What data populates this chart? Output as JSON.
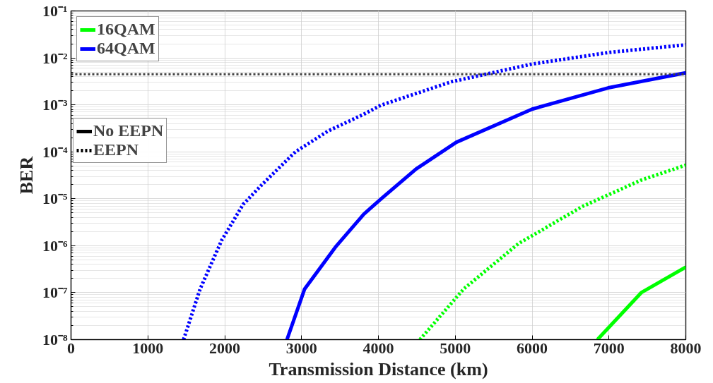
{
  "chart_data": {
    "type": "line",
    "xlabel": "Transmission Distance (km)",
    "ylabel": "BER",
    "log": "y",
    "grid": true,
    "legend": "top left",
    "marker": "none",
    "xlim": [
      0,
      8000
    ],
    "xticks": [
      0,
      1000,
      2000,
      3000,
      4000,
      5000,
      6000,
      7000,
      8000
    ],
    "ylim": [
      1e-08,
      0.1
    ],
    "yticks": [
      {
        "value": 1e-08,
        "label": "10⁻⁸"
      },
      {
        "value": 1e-07,
        "label": "10⁻⁷"
      },
      {
        "value": 1e-06,
        "label": "10⁻⁶"
      },
      {
        "value": 1e-05,
        "label": "10⁻⁵"
      },
      {
        "value": 0.0001,
        "label": "10⁻⁴"
      },
      {
        "value": 0.001,
        "label": "10⁻³"
      },
      {
        "value": 0.01,
        "label": "10⁻²"
      },
      {
        "value": 0.1,
        "label": "10⁻¹"
      }
    ],
    "annotations": [
      "No EEPN",
      "EEPN"
    ],
    "ref_lines": [
      {
        "axis": "y",
        "value": 0.0045,
        "color": "#404040",
        "line_style": "dotted"
      }
    ],
    "series": [
      {
        "name": "16QAM",
        "color": "#00ff00",
        "line_style": "solid",
        "x": [
          6850,
          7420,
          8000
        ],
        "values": [
          1e-08,
          1e-07,
          3.5e-07
        ]
      },
      {
        "name": "64QAM",
        "color": "#0000ff",
        "line_style": "solid",
        "x": [
          2810,
          3040,
          3440,
          3810,
          4030,
          4490,
          5015,
          6000,
          6990,
          8000
        ],
        "values": [
          1e-08,
          1.2e-07,
          9.3e-07,
          4.7e-06,
          9.8e-06,
          4.3e-05,
          0.00016,
          0.00081,
          0.0023,
          0.0048
        ]
      },
      {
        "color": "#00ff00",
        "line_style": "dotted",
        "x": [
          4540,
          5110,
          5820,
          6650,
          7420,
          8000
        ],
        "values": [
          1e-08,
          1.2e-07,
          1.1e-06,
          6.8e-06,
          2.5e-05,
          5.2e-05
        ]
      },
      {
        "color": "#0000ff",
        "line_style": "dotted",
        "x": [
          1465,
          1680,
          1960,
          2240,
          2485,
          2920,
          3350,
          3810,
          4030,
          4950,
          6000,
          6990,
          8000
        ],
        "values": [
          1e-08,
          1.2e-07,
          1.3e-06,
          7.6e-06,
          2e-05,
          0.0001,
          0.00028,
          0.00063,
          0.00098,
          0.0031,
          0.0074,
          0.013,
          0.019
        ]
      }
    ]
  }
}
